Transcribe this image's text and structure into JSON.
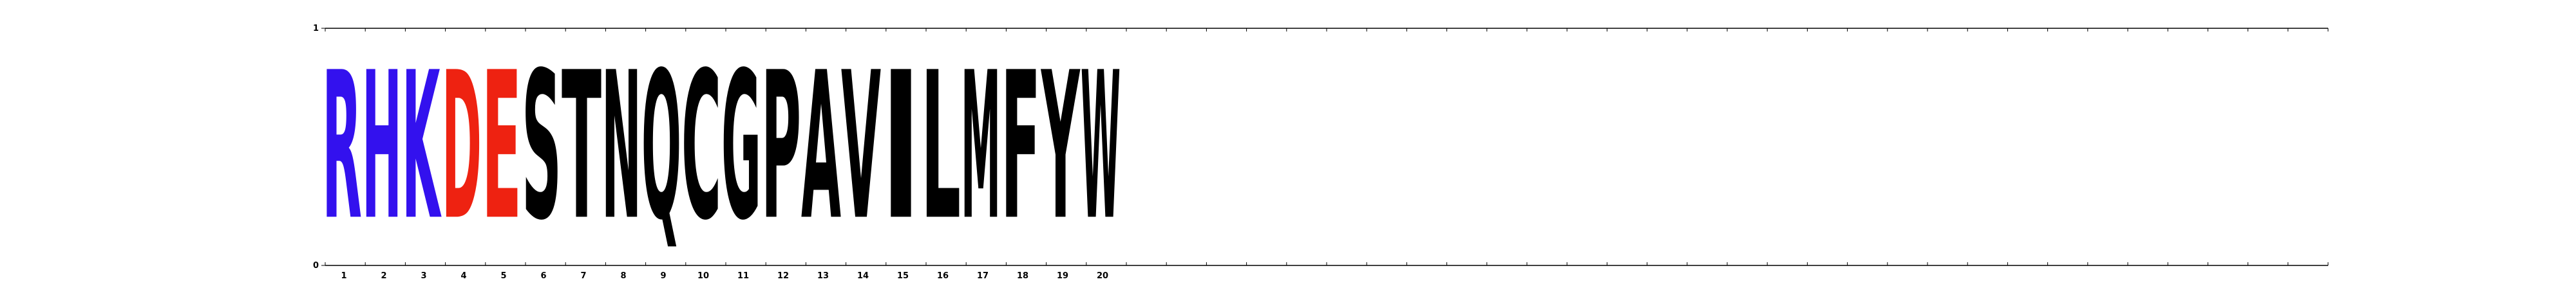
{
  "chart_data": {
    "type": "sequence-logo",
    "title": "",
    "xlabel": "",
    "ylabel": "",
    "ylim": [
      0,
      1
    ],
    "y_ticks": [
      "0",
      "1"
    ],
    "positions": [
      "1",
      "2",
      "3",
      "4",
      "5",
      "6",
      "7",
      "8",
      "9",
      "10",
      "11",
      "12",
      "13",
      "14",
      "15",
      "16",
      "17",
      "18",
      "19",
      "20"
    ],
    "letters": [
      {
        "letter": "R",
        "position": 1,
        "height": 1.0,
        "color": "#3311ee"
      },
      {
        "letter": "H",
        "position": 2,
        "height": 1.0,
        "color": "#3311ee"
      },
      {
        "letter": "K",
        "position": 3,
        "height": 1.0,
        "color": "#3311ee"
      },
      {
        "letter": "D",
        "position": 4,
        "height": 1.0,
        "color": "#ee2211"
      },
      {
        "letter": "E",
        "position": 5,
        "height": 1.0,
        "color": "#ee2211"
      },
      {
        "letter": "S",
        "position": 6,
        "height": 1.0,
        "color": "#000000"
      },
      {
        "letter": "T",
        "position": 7,
        "height": 1.0,
        "color": "#000000"
      },
      {
        "letter": "N",
        "position": 8,
        "height": 1.0,
        "color": "#000000"
      },
      {
        "letter": "Q",
        "position": 9,
        "height": 1.0,
        "color": "#000000"
      },
      {
        "letter": "C",
        "position": 10,
        "height": 1.0,
        "color": "#000000"
      },
      {
        "letter": "G",
        "position": 11,
        "height": 1.0,
        "color": "#000000"
      },
      {
        "letter": "P",
        "position": 12,
        "height": 1.0,
        "color": "#000000"
      },
      {
        "letter": "A",
        "position": 13,
        "height": 1.0,
        "color": "#000000"
      },
      {
        "letter": "V",
        "position": 14,
        "height": 1.0,
        "color": "#000000"
      },
      {
        "letter": "I",
        "position": 15,
        "height": 1.0,
        "color": "#000000"
      },
      {
        "letter": "L",
        "position": 16,
        "height": 1.0,
        "color": "#000000"
      },
      {
        "letter": "M",
        "position": 17,
        "height": 1.0,
        "color": "#000000"
      },
      {
        "letter": "F",
        "position": 18,
        "height": 1.0,
        "color": "#000000"
      },
      {
        "letter": "Y",
        "position": 19,
        "height": 1.0,
        "color": "#000000"
      },
      {
        "letter": "W",
        "position": 20,
        "height": 1.0,
        "color": "#000000"
      }
    ],
    "x_minor_tick_count": 50,
    "grid": false,
    "legend": "none"
  }
}
